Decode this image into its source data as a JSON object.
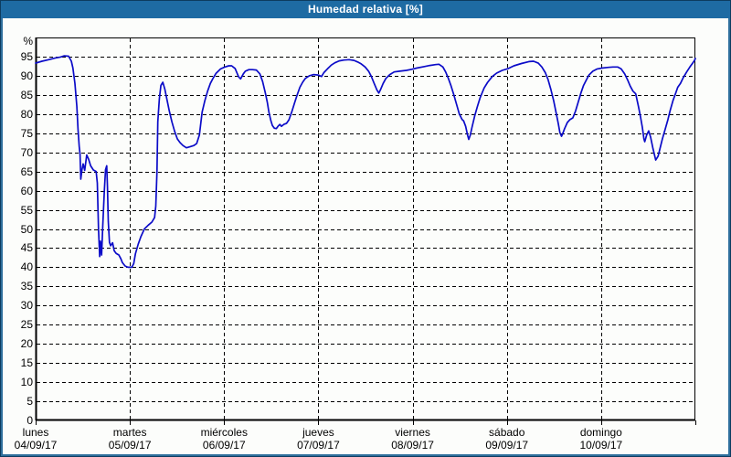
{
  "window": {
    "title": "Humedad relativa [%]"
  },
  "colors": {
    "titlebar": "#1E6BA3",
    "frame": "#2E6F9C",
    "frame_outer": "#0D3C5F",
    "content_background": "#FCFDFB",
    "plot_border": "#000000",
    "grid": "#000000",
    "line": "#0B0BC8",
    "title_text": "#FFFFFF",
    "axis_text": "#000000"
  },
  "chart_data": {
    "type": "line",
    "title": "Humedad relativa [%]",
    "unit_label": "%",
    "ylim": [
      0,
      100
    ],
    "y_ticks": [
      0,
      5,
      10,
      15,
      20,
      25,
      30,
      35,
      40,
      45,
      50,
      55,
      60,
      65,
      70,
      75,
      80,
      85,
      90,
      95
    ],
    "grid": "dashed",
    "legend_position": "none",
    "x_axis": {
      "xlim_hours": [
        0,
        168
      ],
      "hours_per_day": 24,
      "days": [
        {
          "name": "lunes",
          "date": "04/09/17"
        },
        {
          "name": "martes",
          "date": "05/09/17"
        },
        {
          "name": "miércoles",
          "date": "06/09/17"
        },
        {
          "name": "jueves",
          "date": "07/09/17"
        },
        {
          "name": "viernes",
          "date": "08/09/17"
        },
        {
          "name": "sábado",
          "date": "09/09/17"
        },
        {
          "name": "domingo",
          "date": "10/09/17"
        }
      ]
    },
    "series": [
      {
        "name": "Humedad relativa",
        "color": "#0B0BC8",
        "points_hour_value": [
          [
            0,
            93.3
          ],
          [
            1.6,
            93.8
          ],
          [
            3.3,
            94.2
          ],
          [
            4.9,
            94.6
          ],
          [
            6.3,
            94.9
          ],
          [
            7.3,
            95.2
          ],
          [
            8.4,
            95.1
          ],
          [
            9.1,
            93.8
          ],
          [
            9.5,
            92
          ],
          [
            10,
            88
          ],
          [
            10.5,
            82
          ],
          [
            10.8,
            76
          ],
          [
            11.1,
            71.5
          ],
          [
            11.3,
            69.5
          ],
          [
            11.5,
            63
          ],
          [
            11.8,
            65.5
          ],
          [
            12.1,
            67
          ],
          [
            12.5,
            65.3
          ],
          [
            13,
            69.3
          ],
          [
            13.5,
            68.2
          ],
          [
            14,
            66.5
          ],
          [
            14.7,
            65.4
          ],
          [
            15.4,
            65
          ],
          [
            15.7,
            62
          ],
          [
            16,
            50
          ],
          [
            16.3,
            42.8
          ],
          [
            16.5,
            46.8
          ],
          [
            16.8,
            43.2
          ],
          [
            17.1,
            51
          ],
          [
            17.5,
            60
          ],
          [
            17.8,
            65.5
          ],
          [
            18.1,
            66.5
          ],
          [
            18.3,
            61
          ],
          [
            18.5,
            52
          ],
          [
            18.8,
            46.5
          ],
          [
            19.1,
            45.6
          ],
          [
            19.6,
            46.4
          ],
          [
            20,
            44.3
          ],
          [
            20.5,
            43.6
          ],
          [
            21.2,
            43.2
          ],
          [
            21.7,
            42.2
          ],
          [
            22.1,
            41.2
          ],
          [
            22.8,
            40.3
          ],
          [
            23.5,
            40
          ],
          [
            24.5,
            40
          ],
          [
            25,
            41
          ],
          [
            25.4,
            43.5
          ],
          [
            26.1,
            46
          ],
          [
            26.8,
            48
          ],
          [
            27.7,
            50
          ],
          [
            28.7,
            51
          ],
          [
            29.6,
            51.8
          ],
          [
            30.3,
            53
          ],
          [
            30.6,
            56
          ],
          [
            30.9,
            65
          ],
          [
            31.1,
            78
          ],
          [
            31.5,
            84
          ],
          [
            31.9,
            87.5
          ],
          [
            32.4,
            88.3
          ],
          [
            32.9,
            86.5
          ],
          [
            33.3,
            84.5
          ],
          [
            34,
            81
          ],
          [
            34.7,
            78
          ],
          [
            35.4,
            75.5
          ],
          [
            36.1,
            73.5
          ],
          [
            36.8,
            72.5
          ],
          [
            37.5,
            71.8
          ],
          [
            38.4,
            71.2
          ],
          [
            39.4,
            71.5
          ],
          [
            40.3,
            71.8
          ],
          [
            41,
            72.3
          ],
          [
            41.7,
            74.5
          ],
          [
            42.4,
            80.5
          ],
          [
            43.1,
            83.5
          ],
          [
            43.8,
            86
          ],
          [
            44.5,
            88
          ],
          [
            45.2,
            89.4
          ],
          [
            45.9,
            90.6
          ],
          [
            47.1,
            91.8
          ],
          [
            48.2,
            92.3
          ],
          [
            49.2,
            92.6
          ],
          [
            49.9,
            92.6
          ],
          [
            50.8,
            91.9
          ],
          [
            51.7,
            89.7
          ],
          [
            52.2,
            89.2
          ],
          [
            52.9,
            90.5
          ],
          [
            53.4,
            91.2
          ],
          [
            54.3,
            91.6
          ],
          [
            55.2,
            91.6
          ],
          [
            56.2,
            91.5
          ],
          [
            57.1,
            90.5
          ],
          [
            57.8,
            88.5
          ],
          [
            58.5,
            85.5
          ],
          [
            59,
            83
          ],
          [
            59.4,
            80.5
          ],
          [
            59.9,
            78.3
          ],
          [
            60.3,
            77
          ],
          [
            60.8,
            76.3
          ],
          [
            61.3,
            76.2
          ],
          [
            61.7,
            76.8
          ],
          [
            62.2,
            77.3
          ],
          [
            62.6,
            76.8
          ],
          [
            63.2,
            77.3
          ],
          [
            63.9,
            77.6
          ],
          [
            64.5,
            78.5
          ],
          [
            65.2,
            80.5
          ],
          [
            65.9,
            82.8
          ],
          [
            66.6,
            85
          ],
          [
            67.3,
            87
          ],
          [
            68,
            88.3
          ],
          [
            68.7,
            89.3
          ],
          [
            69.7,
            90
          ],
          [
            70.8,
            90.3
          ],
          [
            72,
            90.2
          ],
          [
            72.8,
            89.8
          ],
          [
            73.4,
            90.8
          ],
          [
            74.3,
            91.8
          ],
          [
            75.3,
            92.8
          ],
          [
            76.2,
            93.4
          ],
          [
            77.3,
            93.9
          ],
          [
            78.5,
            94.1
          ],
          [
            79.9,
            94.2
          ],
          [
            81.1,
            94
          ],
          [
            82,
            93.6
          ],
          [
            82.9,
            93.1
          ],
          [
            83.9,
            92.3
          ],
          [
            84.8,
            91.2
          ],
          [
            85.5,
            89.8
          ],
          [
            86.2,
            88
          ],
          [
            86.9,
            86.3
          ],
          [
            87.4,
            85.5
          ],
          [
            87.8,
            86.3
          ],
          [
            88.5,
            88
          ],
          [
            89.2,
            89.3
          ],
          [
            90.2,
            90.3
          ],
          [
            91.3,
            91
          ],
          [
            92.7,
            91.2
          ],
          [
            94.4,
            91.4
          ],
          [
            95.8,
            91.7
          ],
          [
            97,
            92
          ],
          [
            99,
            92.4
          ],
          [
            100.4,
            92.7
          ],
          [
            101.8,
            92.9
          ],
          [
            102.7,
            93
          ],
          [
            103.7,
            92.3
          ],
          [
            104.4,
            91
          ],
          [
            105.1,
            89.3
          ],
          [
            105.8,
            87.3
          ],
          [
            106.5,
            85
          ],
          [
            107.2,
            82.5
          ],
          [
            107.9,
            80
          ],
          [
            108.6,
            78.6
          ],
          [
            109,
            78.2
          ],
          [
            109.5,
            76.8
          ],
          [
            110,
            74.5
          ],
          [
            110.3,
            73.4
          ],
          [
            110.7,
            74.5
          ],
          [
            111.1,
            76.5
          ],
          [
            111.8,
            79.5
          ],
          [
            112.5,
            82
          ],
          [
            113.2,
            84.3
          ],
          [
            114.2,
            86.8
          ],
          [
            115.1,
            88.3
          ],
          [
            116.3,
            89.8
          ],
          [
            117.4,
            90.7
          ],
          [
            118.8,
            91.4
          ],
          [
            120.4,
            91.9
          ],
          [
            121.8,
            92.6
          ],
          [
            123.7,
            93.2
          ],
          [
            125.6,
            93.7
          ],
          [
            126.8,
            93.8
          ],
          [
            128,
            93.3
          ],
          [
            128.9,
            92.3
          ],
          [
            129.8,
            90.8
          ],
          [
            130.5,
            89
          ],
          [
            131.2,
            86.5
          ],
          [
            131.9,
            83.5
          ],
          [
            132.6,
            80
          ],
          [
            133.1,
            77.5
          ],
          [
            133.5,
            75.2
          ],
          [
            133.9,
            74.2
          ],
          [
            134.2,
            74.8
          ],
          [
            134.7,
            76.2
          ],
          [
            135.4,
            77.8
          ],
          [
            136.1,
            78.6
          ],
          [
            136.8,
            79
          ],
          [
            137.5,
            80.8
          ],
          [
            138.2,
            83.2
          ],
          [
            138.9,
            85.6
          ],
          [
            139.5,
            87.4
          ],
          [
            140.2,
            88.8
          ],
          [
            140.9,
            90.2
          ],
          [
            141.9,
            91.2
          ],
          [
            143,
            91.8
          ],
          [
            144.2,
            92
          ],
          [
            145.9,
            92.2
          ],
          [
            147,
            92.3
          ],
          [
            148.2,
            92.3
          ],
          [
            149.1,
            91.8
          ],
          [
            150,
            90.5
          ],
          [
            150.7,
            89
          ],
          [
            151.4,
            87.3
          ],
          [
            152.1,
            86
          ],
          [
            152.8,
            85.3
          ],
          [
            153.5,
            82
          ],
          [
            154,
            79.5
          ],
          [
            154.5,
            76.5
          ],
          [
            154.9,
            73.5
          ],
          [
            155.1,
            72.8
          ],
          [
            155.6,
            74.5
          ],
          [
            156.1,
            75.6
          ],
          [
            156.6,
            74
          ],
          [
            157.2,
            71
          ],
          [
            157.9,
            68
          ],
          [
            158.5,
            69
          ],
          [
            159,
            71
          ],
          [
            159.6,
            73.5
          ],
          [
            160.3,
            76
          ],
          [
            161,
            78.5
          ],
          [
            161.6,
            81
          ],
          [
            162.3,
            83.5
          ],
          [
            163,
            85.5
          ],
          [
            163.5,
            87
          ],
          [
            164.2,
            88
          ],
          [
            164.9,
            89.5
          ],
          [
            165.8,
            91
          ],
          [
            166.6,
            92.3
          ],
          [
            167.3,
            93.3
          ],
          [
            167.8,
            94
          ],
          [
            168,
            94.5
          ]
        ]
      }
    ]
  }
}
